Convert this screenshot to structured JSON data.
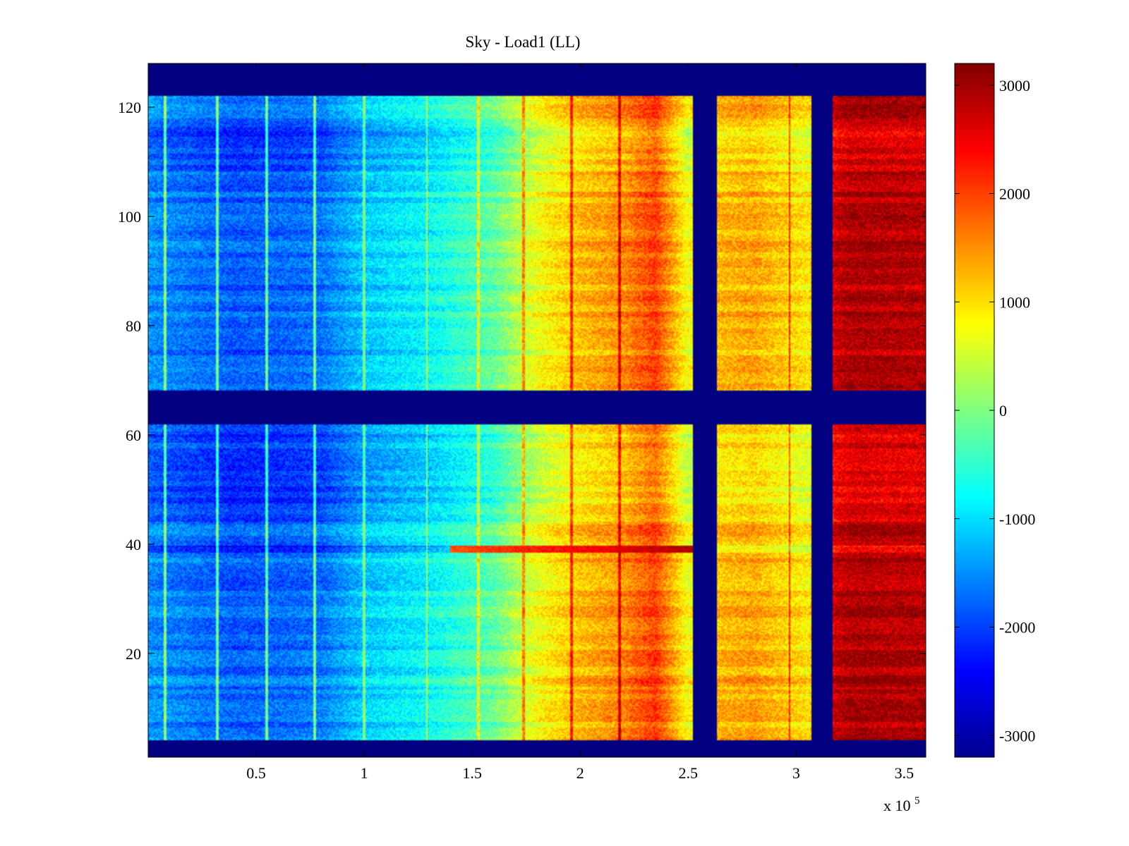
{
  "chart_data": {
    "type": "heatmap",
    "title": "Sky - Load1 (LL)",
    "xlabel": "",
    "ylabel": "",
    "x_multiplier_label": "x 10",
    "x_multiplier_exponent": "5",
    "xlim": [
      0,
      3.6
    ],
    "ylim": [
      1,
      128
    ],
    "x_ticks": [
      {
        "value": 0.5,
        "label": "0.5"
      },
      {
        "value": 1,
        "label": "1"
      },
      {
        "value": 1.5,
        "label": "1.5"
      },
      {
        "value": 2,
        "label": "2"
      },
      {
        "value": 2.5,
        "label": "2.5"
      },
      {
        "value": 3,
        "label": "3"
      },
      {
        "value": 3.5,
        "label": "3.5"
      }
    ],
    "y_ticks": [
      {
        "value": 20,
        "label": "20"
      },
      {
        "value": 40,
        "label": "40"
      },
      {
        "value": 60,
        "label": "60"
      },
      {
        "value": 80,
        "label": "80"
      },
      {
        "value": 100,
        "label": "100"
      },
      {
        "value": 120,
        "label": "120"
      }
    ],
    "colorbar": {
      "colormap": "jet",
      "range": [
        -3200,
        3200
      ],
      "ticks": [
        {
          "value": 3000,
          "label": "3000"
        },
        {
          "value": 2000,
          "label": "2000"
        },
        {
          "value": 1000,
          "label": "1000"
        },
        {
          "value": 0,
          "label": "0"
        },
        {
          "value": -1000,
          "label": "-1000"
        },
        {
          "value": -2000,
          "label": "-2000"
        },
        {
          "value": -3000,
          "label": "-3000"
        }
      ]
    },
    "fill_value": -3200,
    "masked_x_ranges": [
      [
        2.52,
        2.63
      ],
      [
        3.07,
        3.17
      ]
    ],
    "masked_y_ranges": [
      [
        1,
        4
      ],
      [
        62,
        68
      ],
      [
        122,
        128
      ]
    ],
    "column_profile": {
      "x": [
        0,
        0.4,
        0.8,
        1.0,
        1.3,
        1.6,
        1.8,
        2.0,
        2.2,
        2.35,
        2.5,
        2.64,
        2.8,
        3.06,
        3.18,
        3.25,
        3.6
      ],
      "value": [
        -1500,
        -1850,
        -1700,
        -1150,
        -800,
        -200,
        700,
        1200,
        1500,
        2000,
        700,
        1200,
        1350,
        900,
        2700,
        2900,
        2850
      ]
    },
    "row_offsets": [
      {
        "y_range": [
          44,
          60
        ],
        "offset": -300
      },
      {
        "y_range": [
          108,
          118
        ],
        "offset": -250
      },
      {
        "y_range": [
          14,
          16
        ],
        "offset": 300
      }
    ],
    "hot_row": {
      "y": 39,
      "x_range": [
        1.4,
        2.52
      ],
      "value": 2900
    },
    "stripes_bright": [
      0.08,
      0.32,
      0.55,
      0.77
    ],
    "stripes_dark": [
      1.0,
      1.29,
      1.53,
      1.74,
      1.96,
      2.18,
      2.97
    ]
  }
}
